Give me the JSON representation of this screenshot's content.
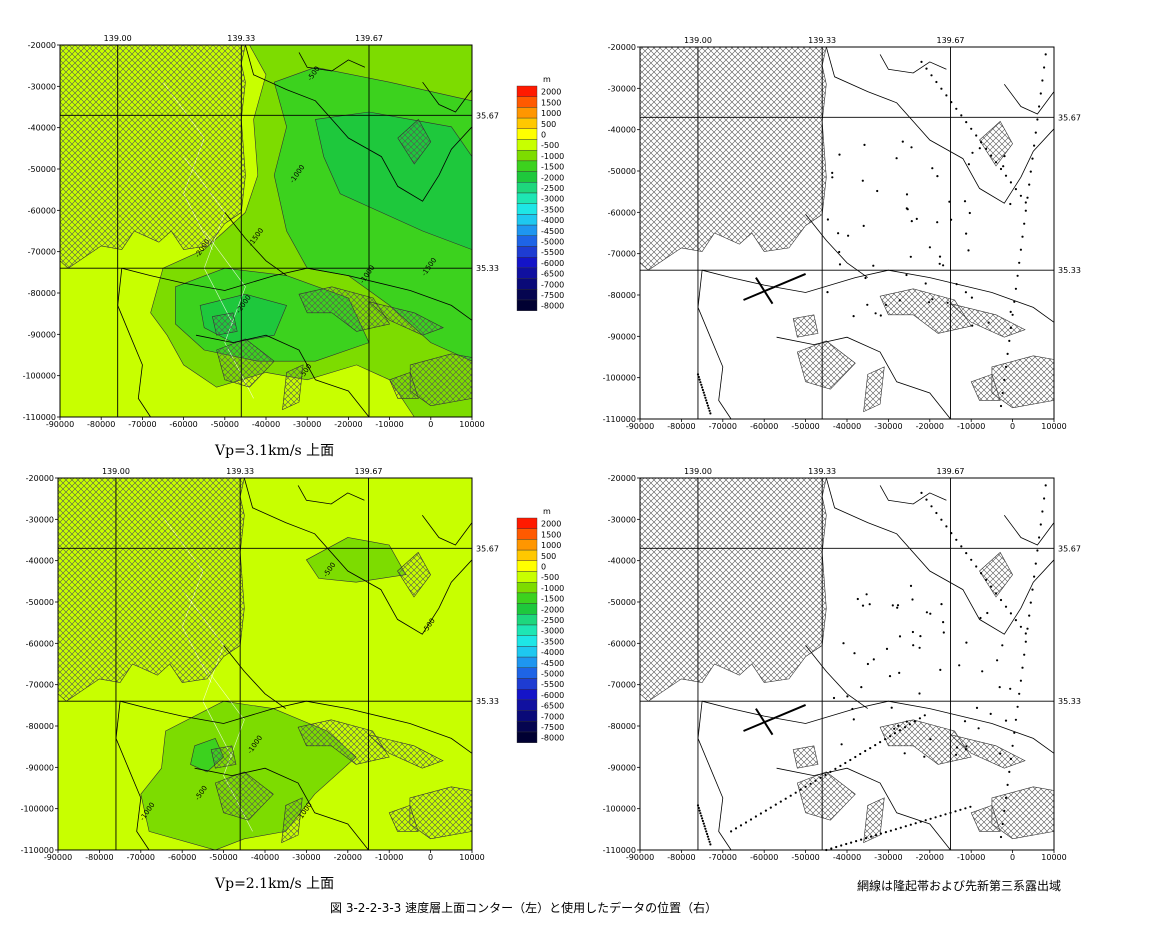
{
  "figure_caption": "図 3-2-2-3-3  速度層上面コンター（左）と使用したデータの位置（右）",
  "hatch_note": "網線は隆起帯および先新第三系露出域",
  "colors": {
    "frame": "#000000",
    "coast": "#000000",
    "grid": "#000000"
  },
  "colorbar": {
    "unit": "m",
    "levels": [
      "2000",
      "1500",
      "1000",
      "500",
      "0",
      "-500",
      "-1000",
      "-1500",
      "-2000",
      "-2500",
      "-3000",
      "-3500",
      "-4000",
      "-4500",
      "-5000",
      "-5500",
      "-6000",
      "-6500",
      "-7000",
      "-7500",
      "-8000"
    ],
    "colors": [
      "#ff1a00",
      "#ff5a00",
      "#ff9600",
      "#ffc800",
      "#ffff00",
      "#c8ff00",
      "#7ddc00",
      "#3cd21e",
      "#1ec83c",
      "#1ed77d",
      "#1ee6b4",
      "#1ee6e6",
      "#1ec8f0",
      "#1e96f0",
      "#1e64e6",
      "#1e3cd2",
      "#1414c8",
      "#1010a0",
      "#0a0a78",
      "#050550",
      "#000032"
    ]
  },
  "chart_data": [
    {
      "type": "contour",
      "title": "Vp=3.1km/s 上面",
      "top_tick_labels": [
        "139.00",
        "139.33",
        "139.67"
      ],
      "right_tick_labels": [
        "35.67",
        "35.33"
      ],
      "x_ticks": [
        "-90000",
        "-80000",
        "-70000",
        "-60000",
        "-50000",
        "-40000",
        "-30000",
        "-20000",
        "-10000",
        "0",
        "10000"
      ],
      "y_ticks": [
        "-20000",
        "-30000",
        "-40000",
        "-50000",
        "-60000",
        "-70000",
        "-80000",
        "-90000",
        "-100000",
        "-110000"
      ],
      "xlim": [
        -90000,
        10000
      ],
      "ylim": [
        -110000,
        -20000
      ],
      "contour_labels": [
        "-500",
        "-1000",
        "-1500",
        "-2000"
      ]
    },
    {
      "type": "scatter",
      "title": "",
      "description_value": "data positions",
      "top_tick_labels": [
        "139.00",
        "139.33",
        "139.67"
      ],
      "right_tick_labels": [
        "35.67",
        "35.33"
      ],
      "x_ticks": [
        "-90000",
        "-80000",
        "-70000",
        "-60000",
        "-50000",
        "-40000",
        "-30000",
        "-20000",
        "-10000",
        "0",
        "10000"
      ],
      "y_ticks": [
        "-20000",
        "-30000",
        "-40000",
        "-50000",
        "-60000",
        "-70000",
        "-80000",
        "-90000",
        "-100000",
        "-110000"
      ],
      "xlim": [
        -90000,
        10000
      ],
      "ylim": [
        -110000,
        -20000
      ]
    },
    {
      "type": "contour",
      "title": "Vp=2.1km/s 上面",
      "top_tick_labels": [
        "139.00",
        "139.33",
        "139.67"
      ],
      "right_tick_labels": [
        "35.67",
        "35.33"
      ],
      "x_ticks": [
        "-90000",
        "-80000",
        "-70000",
        "-60000",
        "-50000",
        "-40000",
        "-30000",
        "-20000",
        "-10000",
        "0",
        "10000"
      ],
      "y_ticks": [
        "-20000",
        "-30000",
        "-40000",
        "-50000",
        "-60000",
        "-70000",
        "-80000",
        "-90000",
        "-100000",
        "-110000"
      ],
      "xlim": [
        -90000,
        10000
      ],
      "ylim": [
        -110000,
        -20000
      ],
      "contour_labels": [
        "-500",
        "-1000"
      ]
    },
    {
      "type": "scatter",
      "title": "",
      "top_tick_labels": [
        "139.00",
        "139.33",
        "139.67"
      ],
      "right_tick_labels": [
        "35.67",
        "35.33"
      ],
      "x_ticks": [
        "-90000",
        "-80000",
        "-70000",
        "-60000",
        "-50000",
        "-40000",
        "-30000",
        "-20000",
        "-10000",
        "0",
        "10000"
      ],
      "y_ticks": [
        "-20000",
        "-30000",
        "-40000",
        "-50000",
        "-60000",
        "-70000",
        "-80000",
        "-90000",
        "-100000",
        "-110000"
      ],
      "xlim": [
        -90000,
        10000
      ],
      "ylim": [
        -110000,
        -20000
      ]
    }
  ]
}
